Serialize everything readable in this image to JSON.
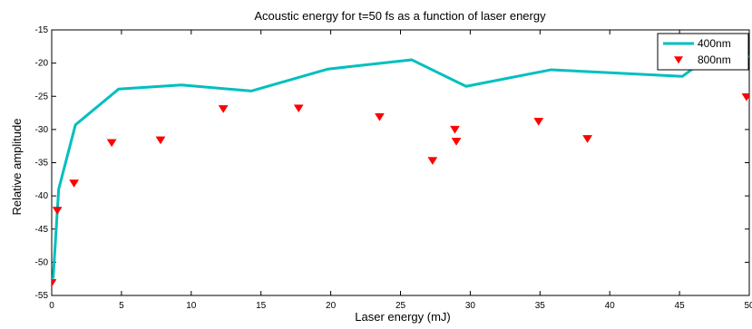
{
  "chart_data": {
    "type": "line",
    "title": "Acoustic energy for t=50 fs as a function of laser energy",
    "xlabel": "Laser energy (mJ)",
    "ylabel": "Relative amplitude",
    "xlim": [
      0,
      50
    ],
    "ylim": [
      -55,
      -15
    ],
    "xticks": [
      0,
      5,
      10,
      15,
      20,
      25,
      30,
      35,
      40,
      45,
      50
    ],
    "xtick_labels": [
      "0",
      "5",
      "10",
      "15",
      "20",
      "25",
      "30",
      "35",
      "40",
      "45",
      "50"
    ],
    "yticks": [
      -15,
      -20,
      -25,
      -30,
      -35,
      -40,
      -45,
      -50,
      -55
    ],
    "ytick_labels": [
      "-15",
      "-20",
      "-25",
      "-30",
      "-35",
      "-40",
      "-45",
      "-50",
      "-55"
    ],
    "grid": false,
    "legend_position": "top-right",
    "series": [
      {
        "name": "400nm",
        "style": "line",
        "color": "#00BFBF",
        "x": [
          0.1,
          0.5,
          1.7,
          4.8,
          9.3,
          14.3,
          19.8,
          25.8,
          29.7,
          35.8,
          45.2,
          46.5,
          50
        ],
        "y": [
          -52.5,
          -39.0,
          -29.3,
          -23.9,
          -23.3,
          -24.2,
          -20.9,
          -19.5,
          -23.5,
          -21.0,
          -22.0,
          -20.0,
          -19.0
        ]
      },
      {
        "name": "800nm",
        "style": "marker",
        "marker": "triangle-down",
        "color": "#FF0000",
        "x": [
          0.0,
          0.4,
          1.6,
          4.3,
          7.8,
          12.3,
          17.7,
          23.5,
          27.3,
          28.9,
          29.0,
          34.9,
          38.4,
          49.8
        ],
        "y": [
          -53.1,
          -42.2,
          -38.1,
          -32.0,
          -31.6,
          -26.9,
          -26.8,
          -28.1,
          -34.7,
          -30.0,
          -31.8,
          -28.8,
          -31.4,
          -25.1
        ]
      }
    ]
  }
}
